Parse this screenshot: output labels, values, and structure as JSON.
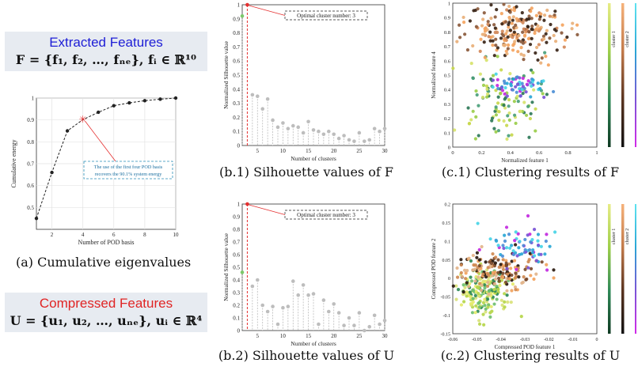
{
  "extracted_box": {
    "title": "Extracted Features",
    "title_color": "#1d1dd6",
    "formula": "F = {f₁, f₂, …, fₙₑ}, fᵢ ∈ ℝ¹⁰"
  },
  "compressed_box": {
    "title": "Compressed Features",
    "title_color": "#e02424",
    "formula": "U = {u₁, u₂, …, uₙₑ}, uᵢ ∈ ℝ⁴"
  },
  "captions": {
    "a": "(a) Cumulative eigenvalues",
    "b1": "(b.1) Silhouette values of F",
    "c1": "(c.1) Clustering results of F",
    "b2": "(b.2) Silhouette values of U",
    "c2": "(c.2) Clustering results of U"
  },
  "chart_data": [
    {
      "id": "a",
      "type": "line",
      "title": "",
      "xlabel": "Number of POD basis",
      "ylabel": "Cumulative energy",
      "x": [
        1,
        2,
        3,
        4,
        5,
        6,
        7,
        8,
        9,
        10
      ],
      "y": [
        0.45,
        0.66,
        0.85,
        0.901,
        0.935,
        0.965,
        0.978,
        0.988,
        0.995,
        1.0
      ],
      "xlim": [
        1,
        10
      ],
      "ylim": [
        0.4,
        1.0
      ],
      "xticks": [
        "2",
        "4",
        "6",
        "8",
        "10"
      ],
      "yticks": [
        "0.5",
        "0.6",
        "0.7",
        "0.8",
        "0.9",
        "1"
      ],
      "highlight": {
        "x": 4,
        "y": 0.901,
        "color": "#e53030"
      },
      "annotation": [
        "The use of the first four POD basis",
        "recovers the 90.1% system energy"
      ]
    },
    {
      "id": "b1",
      "type": "scatter",
      "xlabel": "Number of clusters",
      "ylabel": "Normalized Silhouette value",
      "x": [
        2,
        3,
        4,
        5,
        6,
        7,
        8,
        9,
        10,
        11,
        12,
        13,
        14,
        15,
        16,
        17,
        18,
        19,
        20,
        21,
        22,
        23,
        24,
        25,
        26,
        27,
        28,
        29,
        30
      ],
      "y": [
        0.92,
        1.0,
        0.36,
        0.35,
        0.26,
        0.33,
        0.18,
        0.13,
        0.16,
        0.12,
        0.14,
        0.13,
        0.09,
        0.17,
        0.11,
        0.1,
        0.08,
        0.1,
        0.08,
        0.05,
        0.07,
        0.04,
        0.03,
        0.09,
        0.03,
        0.04,
        0.12,
        0.1,
        0.12
      ],
      "xlim": [
        2,
        30
      ],
      "ylim": [
        0,
        1
      ],
      "xticks": [
        "5",
        "10",
        "15",
        "20",
        "25",
        "30"
      ],
      "yticks": [
        "0",
        "0.1",
        "0.2",
        "0.3",
        "0.4",
        "0.5",
        "0.6",
        "0.7",
        "0.8",
        "0.9",
        "1"
      ],
      "optimal": 3,
      "annotation": "Optimal cluster number: 3"
    },
    {
      "id": "b2",
      "type": "scatter",
      "xlabel": "Number of clusters",
      "ylabel": "Normalized Silhouette value",
      "x": [
        2,
        3,
        4,
        5,
        6,
        7,
        8,
        9,
        10,
        11,
        12,
        13,
        14,
        15,
        16,
        17,
        18,
        19,
        20,
        21,
        22,
        23,
        24,
        25,
        26,
        27,
        28,
        29,
        30
      ],
      "y": [
        0.46,
        1.0,
        0.35,
        0.4,
        0.2,
        0.15,
        0.19,
        0.05,
        0.18,
        0.19,
        0.39,
        0.28,
        0.36,
        0.28,
        0.29,
        0.05,
        0.24,
        0.15,
        0.21,
        0.14,
        0.04,
        0.1,
        0.04,
        0.14,
        0.0,
        0.03,
        0.12,
        0.05,
        0.08
      ],
      "xlim": [
        2,
        30
      ],
      "ylim": [
        0,
        1
      ],
      "xticks": [
        "5",
        "10",
        "15",
        "20",
        "25",
        "30"
      ],
      "yticks": [
        "0",
        "0.1",
        "0.2",
        "0.3",
        "0.4",
        "0.5",
        "0.6",
        "0.7",
        "0.8",
        "0.9",
        "1"
      ],
      "optimal": 3,
      "annotation": "Optimal cluster number: 3"
    },
    {
      "id": "c1",
      "type": "scatter",
      "xlabel": "Normalized feature 1",
      "ylabel": "Normalized feature 4",
      "xlim": [
        0,
        1
      ],
      "ylim": [
        0,
        1
      ],
      "xticks": [
        "0",
        "0.2",
        "0.4",
        "0.6",
        "0.8",
        "1"
      ],
      "yticks": [
        "0",
        "0.1",
        "0.2",
        "0.3",
        "0.4",
        "0.5",
        "0.6",
        "0.7",
        "0.8",
        "0.9",
        "1"
      ],
      "clusters": [
        {
          "name": "cluster 1",
          "center": [
            0.35,
            0.32
          ],
          "spread": [
            0.14,
            0.13
          ],
          "colors": [
            "#d7e36b",
            "#9acd4a",
            "#4aa07a",
            "#2f7a58",
            "#c8d84e"
          ]
        },
        {
          "name": "cluster 2",
          "center": [
            0.42,
            0.8
          ],
          "spread": [
            0.17,
            0.09
          ],
          "colors": [
            "#f4a460",
            "#d2895a",
            "#8b5a3c",
            "#3a2518",
            "#e9b07a"
          ]
        },
        {
          "name": "cluster 3",
          "center": [
            0.45,
            0.43
          ],
          "spread": [
            0.1,
            0.04
          ],
          "colors": [
            "#46d4e6",
            "#2aa7d6",
            "#7a54d6",
            "#c22ae0",
            "#4d8fd6"
          ]
        }
      ],
      "legend": [
        "cluster 1",
        "cluster 2",
        "cluster 3"
      ]
    },
    {
      "id": "c2",
      "type": "scatter",
      "xlabel": "Compressed POD feature 1",
      "ylabel": "Compressed POD feature 2",
      "xlim": [
        -0.06,
        0.0
      ],
      "ylim": [
        -0.15,
        0.2
      ],
      "xticks": [
        "-0.06",
        "-0.05",
        "-0.04",
        "-0.03",
        "-0.02",
        "-0.01",
        "0"
      ],
      "yticks": [
        "-0.15",
        "-0.1",
        "-0.05",
        "0",
        "0.05",
        "0.1",
        "0.15",
        "0.2"
      ],
      "clusters": [
        {
          "name": "cluster 1",
          "center": [
            -0.047,
            -0.035
          ],
          "spread": [
            0.0055,
            0.03
          ],
          "colors": [
            "#e5ea6b",
            "#b6d64a",
            "#6fbf6f",
            "#2f8a58",
            "#d9e27a"
          ]
        },
        {
          "name": "cluster 2",
          "center": [
            -0.04,
            0.02
          ],
          "spread": [
            0.009,
            0.025
          ],
          "colors": [
            "#f2a35e",
            "#cf8a52",
            "#7a4a2c",
            "#2a1a10",
            "#e3b48a"
          ]
        },
        {
          "name": "cluster 3",
          "center": [
            -0.031,
            0.085
          ],
          "spread": [
            0.007,
            0.025
          ],
          "colors": [
            "#46d4e6",
            "#2aa7d6",
            "#7a54d6",
            "#c22ae0",
            "#4d8fd6"
          ]
        }
      ],
      "legend": [
        "cluster 1",
        "cluster 2",
        "cluster 3"
      ]
    }
  ]
}
